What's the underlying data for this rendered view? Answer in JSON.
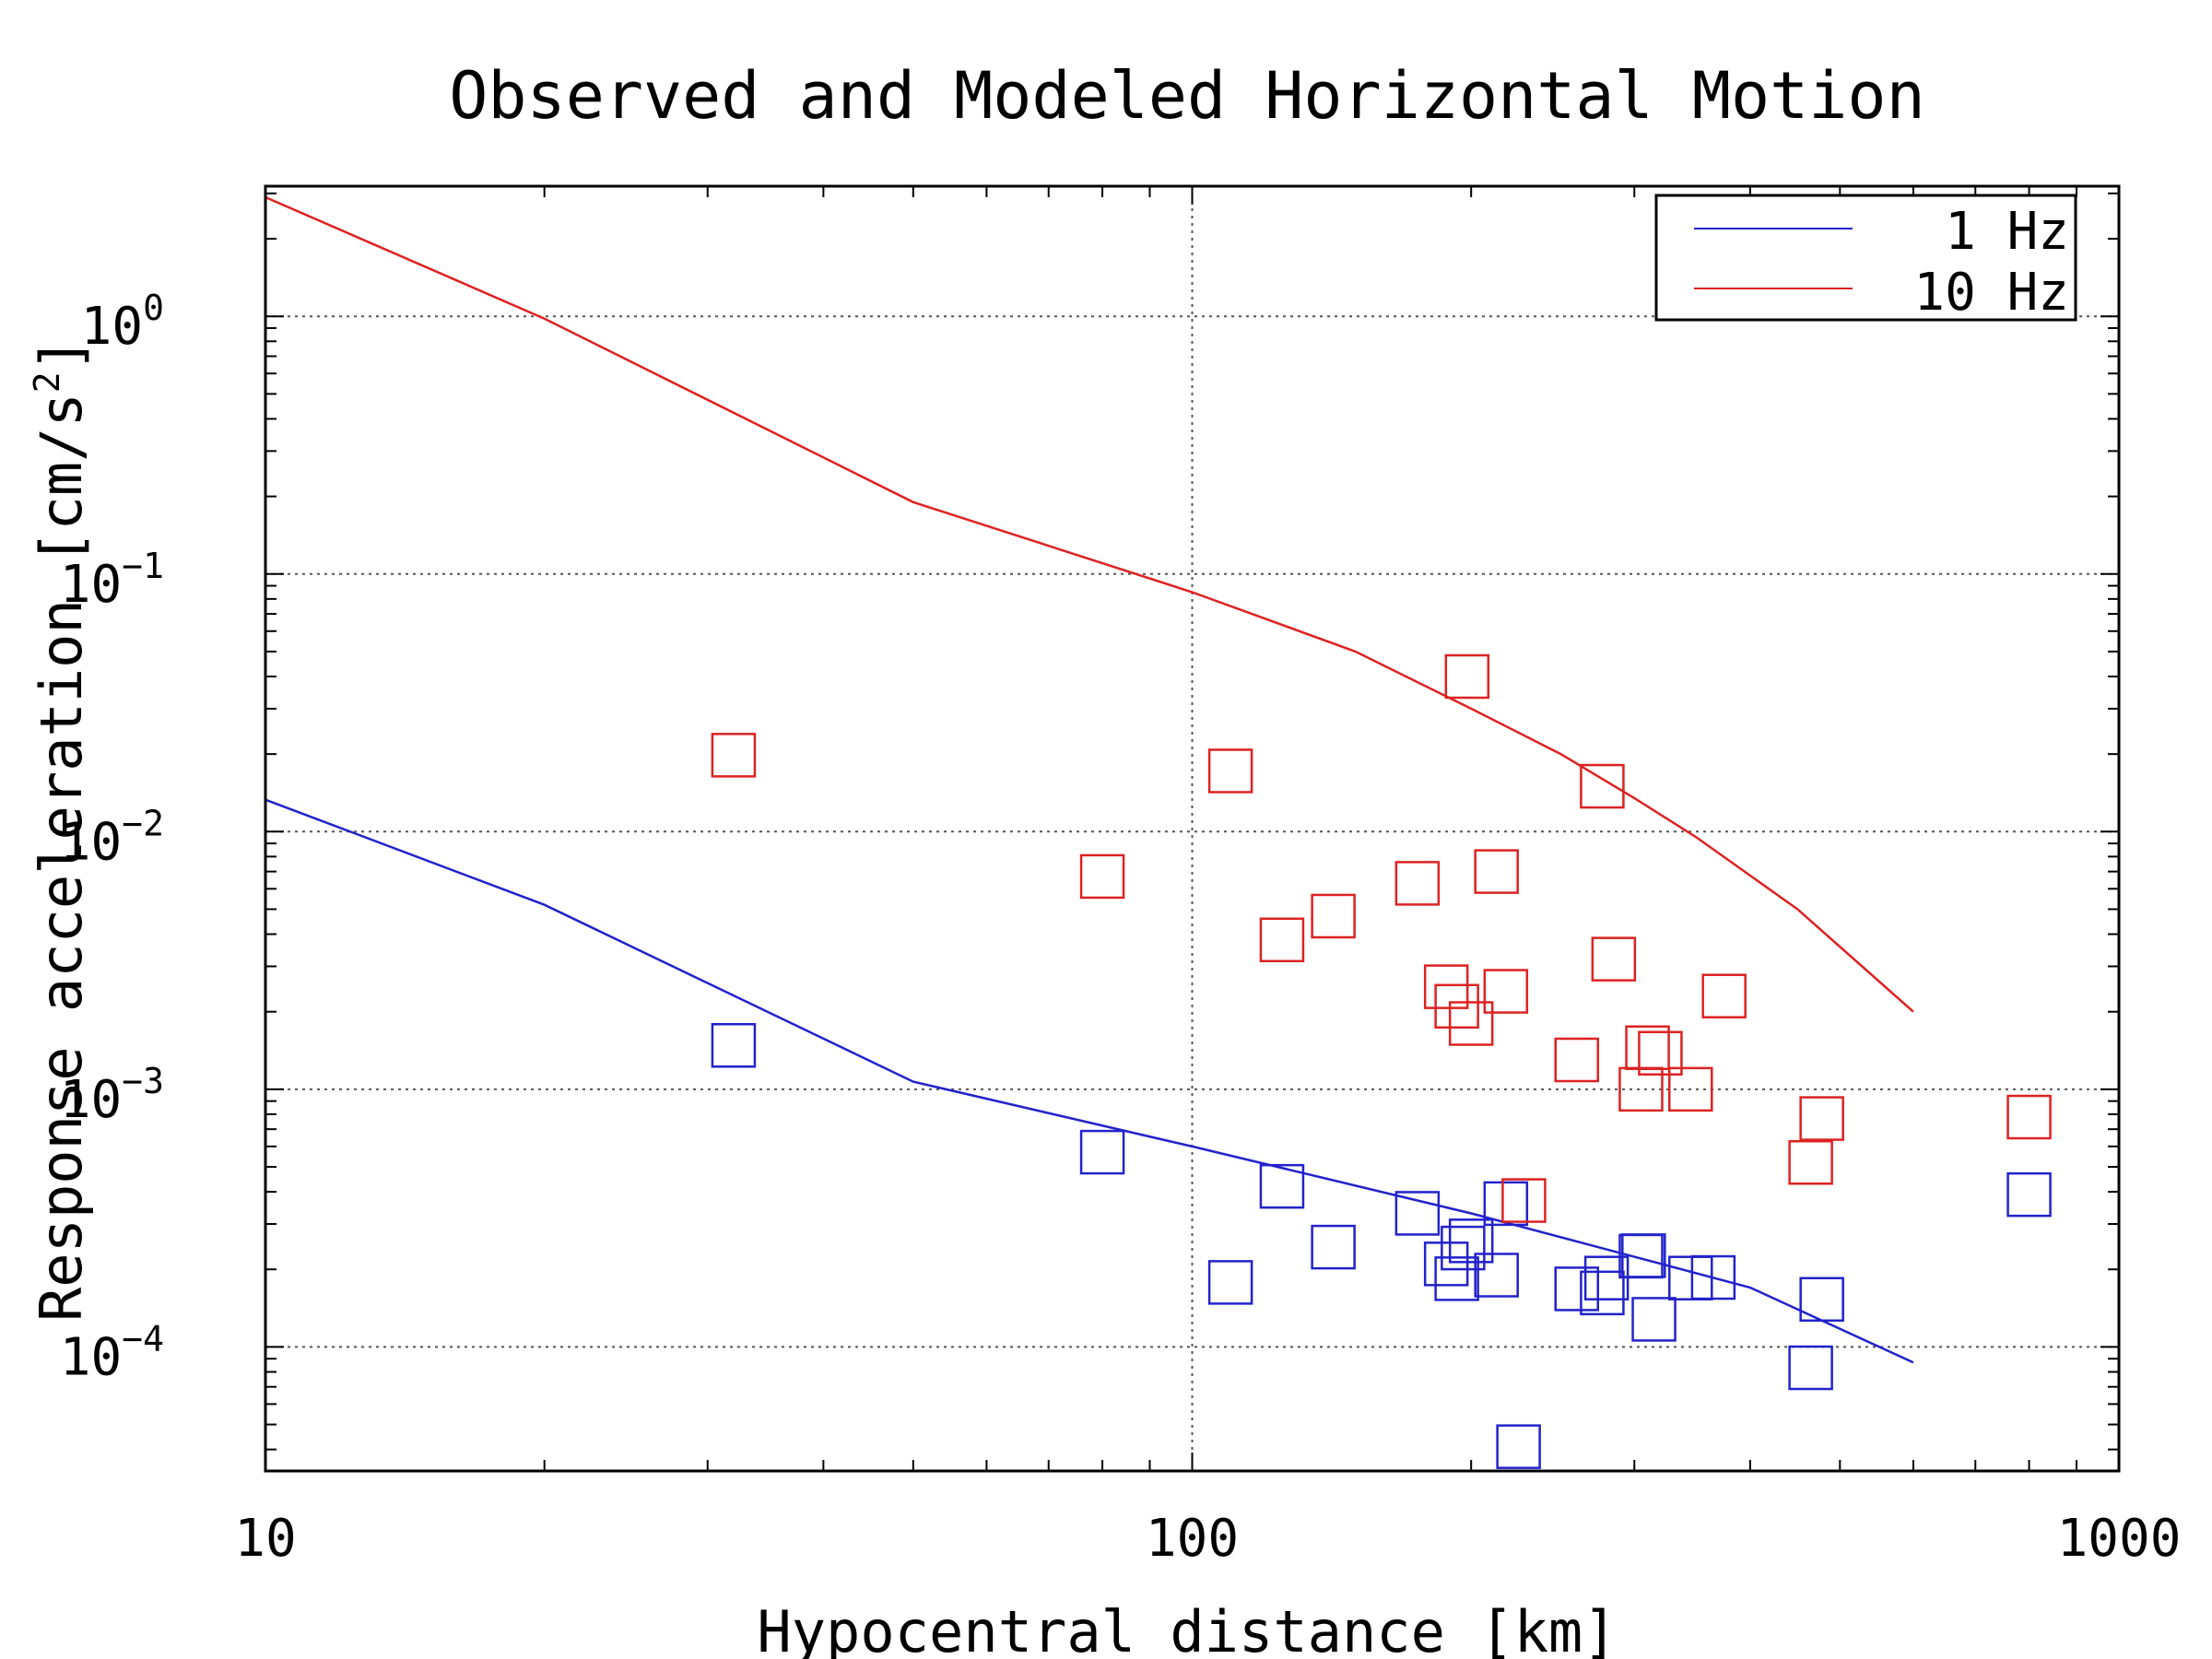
{
  "chart_data": {
    "type": "scatter",
    "title": "Observed and Modeled Horizontal Motion",
    "xlabel": "Hypocentral distance [km]",
    "ylabel": "Response acceleration [cm/s²]",
    "ylabel_parts": {
      "main": "Response acceleration [cm/s",
      "sup": "2",
      "end": "]"
    },
    "x_scale": "log",
    "y_scale": "log",
    "xlim": [
      10,
      1000
    ],
    "ylim": [
      3.3e-05,
      3.2
    ],
    "x_ticks": [
      {
        "value": 10,
        "label": "10"
      },
      {
        "value": 100,
        "label": "100"
      },
      {
        "value": 1000,
        "label": "1000"
      }
    ],
    "y_ticks": [
      {
        "value": 1,
        "base": "10",
        "exp": "0"
      },
      {
        "value": 0.1,
        "base": "10",
        "exp": "−1"
      },
      {
        "value": 0.01,
        "base": "10",
        "exp": "−2"
      },
      {
        "value": 0.001,
        "base": "10",
        "exp": "−3"
      },
      {
        "value": 0.0001,
        "base": "10",
        "exp": "−4"
      }
    ],
    "grid": true,
    "legend_position": "top-right",
    "series": [
      {
        "name": "1 Hz",
        "color": "#2222cc",
        "line": [
          [
            10,
            0.0133
          ],
          [
            20,
            0.0052
          ],
          [
            50,
            0.00107
          ],
          [
            100,
            0.0006
          ],
          [
            200,
            0.00033
          ],
          [
            400,
            0.00017
          ],
          [
            600,
            8.7e-05
          ]
        ],
        "points": [
          [
            32,
            0.00148
          ],
          [
            80,
            0.00057
          ],
          [
            110,
            0.000178
          ],
          [
            125,
            0.00042
          ],
          [
            142,
            0.000244
          ],
          [
            175,
            0.00033
          ],
          [
            188,
            0.00021
          ],
          [
            193,
            0.000184
          ],
          [
            196,
            0.000242
          ],
          [
            200,
            0.000258
          ],
          [
            213,
            0.00019
          ],
          [
            218,
            0.00036
          ],
          [
            225,
            4.1e-05
          ],
          [
            260,
            0.000168
          ],
          [
            277,
            0.000162
          ],
          [
            280,
            0.000185
          ],
          [
            305,
            0.000225
          ],
          [
            307,
            0.000226
          ],
          [
            315,
            0.000128
          ],
          [
            345,
            0.000185
          ],
          [
            365,
            0.000186
          ],
          [
            465,
            8.3e-05
          ],
          [
            478,
            0.000153
          ],
          [
            800,
            0.00039
          ]
        ]
      },
      {
        "name": "10 Hz",
        "color": "#dd2222",
        "line": [
          [
            10,
            2.9
          ],
          [
            20,
            0.98
          ],
          [
            50,
            0.19
          ],
          [
            100,
            0.085
          ],
          [
            150,
            0.05
          ],
          [
            200,
            0.03
          ],
          [
            250,
            0.02
          ],
          [
            300,
            0.0135
          ],
          [
            350,
            0.0095
          ],
          [
            450,
            0.005
          ],
          [
            600,
            0.002
          ]
        ],
        "points": [
          [
            32,
            0.0198
          ],
          [
            80,
            0.0067
          ],
          [
            110,
            0.0172
          ],
          [
            125,
            0.0038
          ],
          [
            142,
            0.0047
          ],
          [
            175,
            0.0063
          ],
          [
            188,
            0.0025
          ],
          [
            193,
            0.0021
          ],
          [
            198,
            0.04
          ],
          [
            200,
            0.0018
          ],
          [
            213,
            0.007
          ],
          [
            218,
            0.0024
          ],
          [
            228,
            0.00037
          ],
          [
            260,
            0.0013
          ],
          [
            277,
            0.015
          ],
          [
            285,
            0.0032
          ],
          [
            305,
            0.001
          ],
          [
            310,
            0.00145
          ],
          [
            320,
            0.00138
          ],
          [
            345,
            0.001
          ],
          [
            375,
            0.0023
          ],
          [
            465,
            0.00052
          ],
          [
            478,
            0.00077
          ],
          [
            800,
            0.00078
          ]
        ]
      }
    ]
  }
}
